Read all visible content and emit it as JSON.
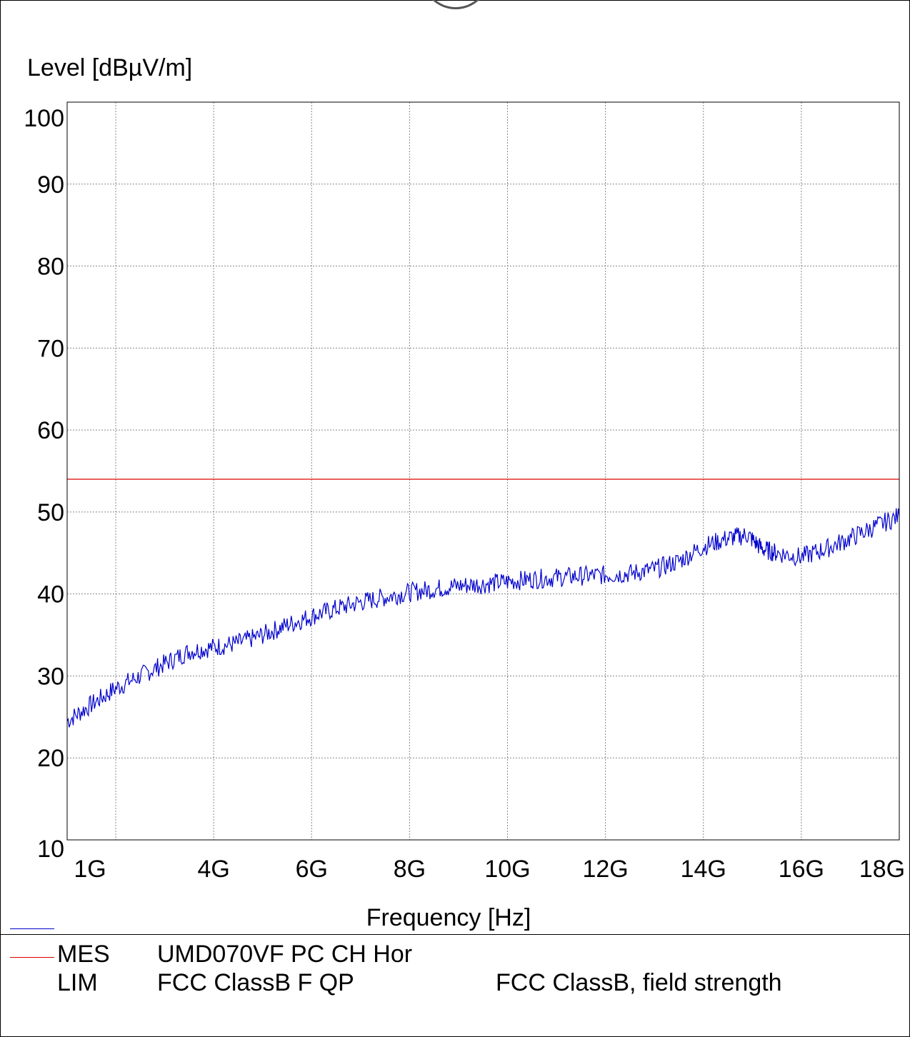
{
  "chart_data": {
    "type": "line",
    "ylabel": "Level [dBµV/m]",
    "xlabel": "Frequency [Hz]",
    "ylim": [
      10,
      100
    ],
    "xlim": [
      1,
      18
    ],
    "x_axis_note": "piecewise: 1G-2G first decade block then linear",
    "x_ticks": [
      {
        "label": "1G",
        "value": 1
      },
      {
        "label": "4G",
        "value": 4
      },
      {
        "label": "6G",
        "value": 6
      },
      {
        "label": "8G",
        "value": 8
      },
      {
        "label": "10G",
        "value": 10
      },
      {
        "label": "12G",
        "value": 12
      },
      {
        "label": "14G",
        "value": 14
      },
      {
        "label": "16G",
        "value": 16
      },
      {
        "label": "18G",
        "value": 18
      }
    ],
    "y_ticks": [
      10,
      20,
      30,
      40,
      50,
      60,
      70,
      80,
      90,
      100
    ],
    "grid": true,
    "series": [
      {
        "name": "MES",
        "color": "#0000cc",
        "x": [
          1,
          1.5,
          2,
          2.5,
          3,
          3.5,
          4,
          4.5,
          5,
          5.5,
          6,
          6.5,
          7,
          7.5,
          8,
          8.5,
          9,
          9.5,
          10,
          10.5,
          11,
          11.5,
          12,
          12.5,
          13,
          13.5,
          14,
          14.5,
          14.9,
          15.2,
          15.5,
          16,
          16.5,
          17,
          17.5,
          18
        ],
        "y": [
          24.5,
          26.5,
          28.5,
          30,
          31.5,
          33,
          33.5,
          34,
          35,
          36.2,
          37.3,
          38.2,
          39,
          39.6,
          40.2,
          40.6,
          41,
          41.2,
          41.5,
          41.8,
          42,
          42.2,
          42.3,
          42.5,
          43,
          44,
          45.8,
          46.8,
          47.2,
          45.5,
          45,
          44.5,
          45.5,
          46.8,
          48.2,
          49.5
        ]
      },
      {
        "name": "LIM",
        "color": "#dd0000",
        "x": [
          1,
          18
        ],
        "y": [
          54,
          54
        ]
      }
    ]
  },
  "legend": {
    "rows": [
      {
        "code": "MES",
        "name": "UMD070VF PC CH Hor",
        "desc": "",
        "color": "#0000cc"
      },
      {
        "code": "LIM",
        "name": "FCC ClassB F QP",
        "desc": "FCC ClassB, field strength",
        "color": "#dd0000"
      }
    ]
  }
}
